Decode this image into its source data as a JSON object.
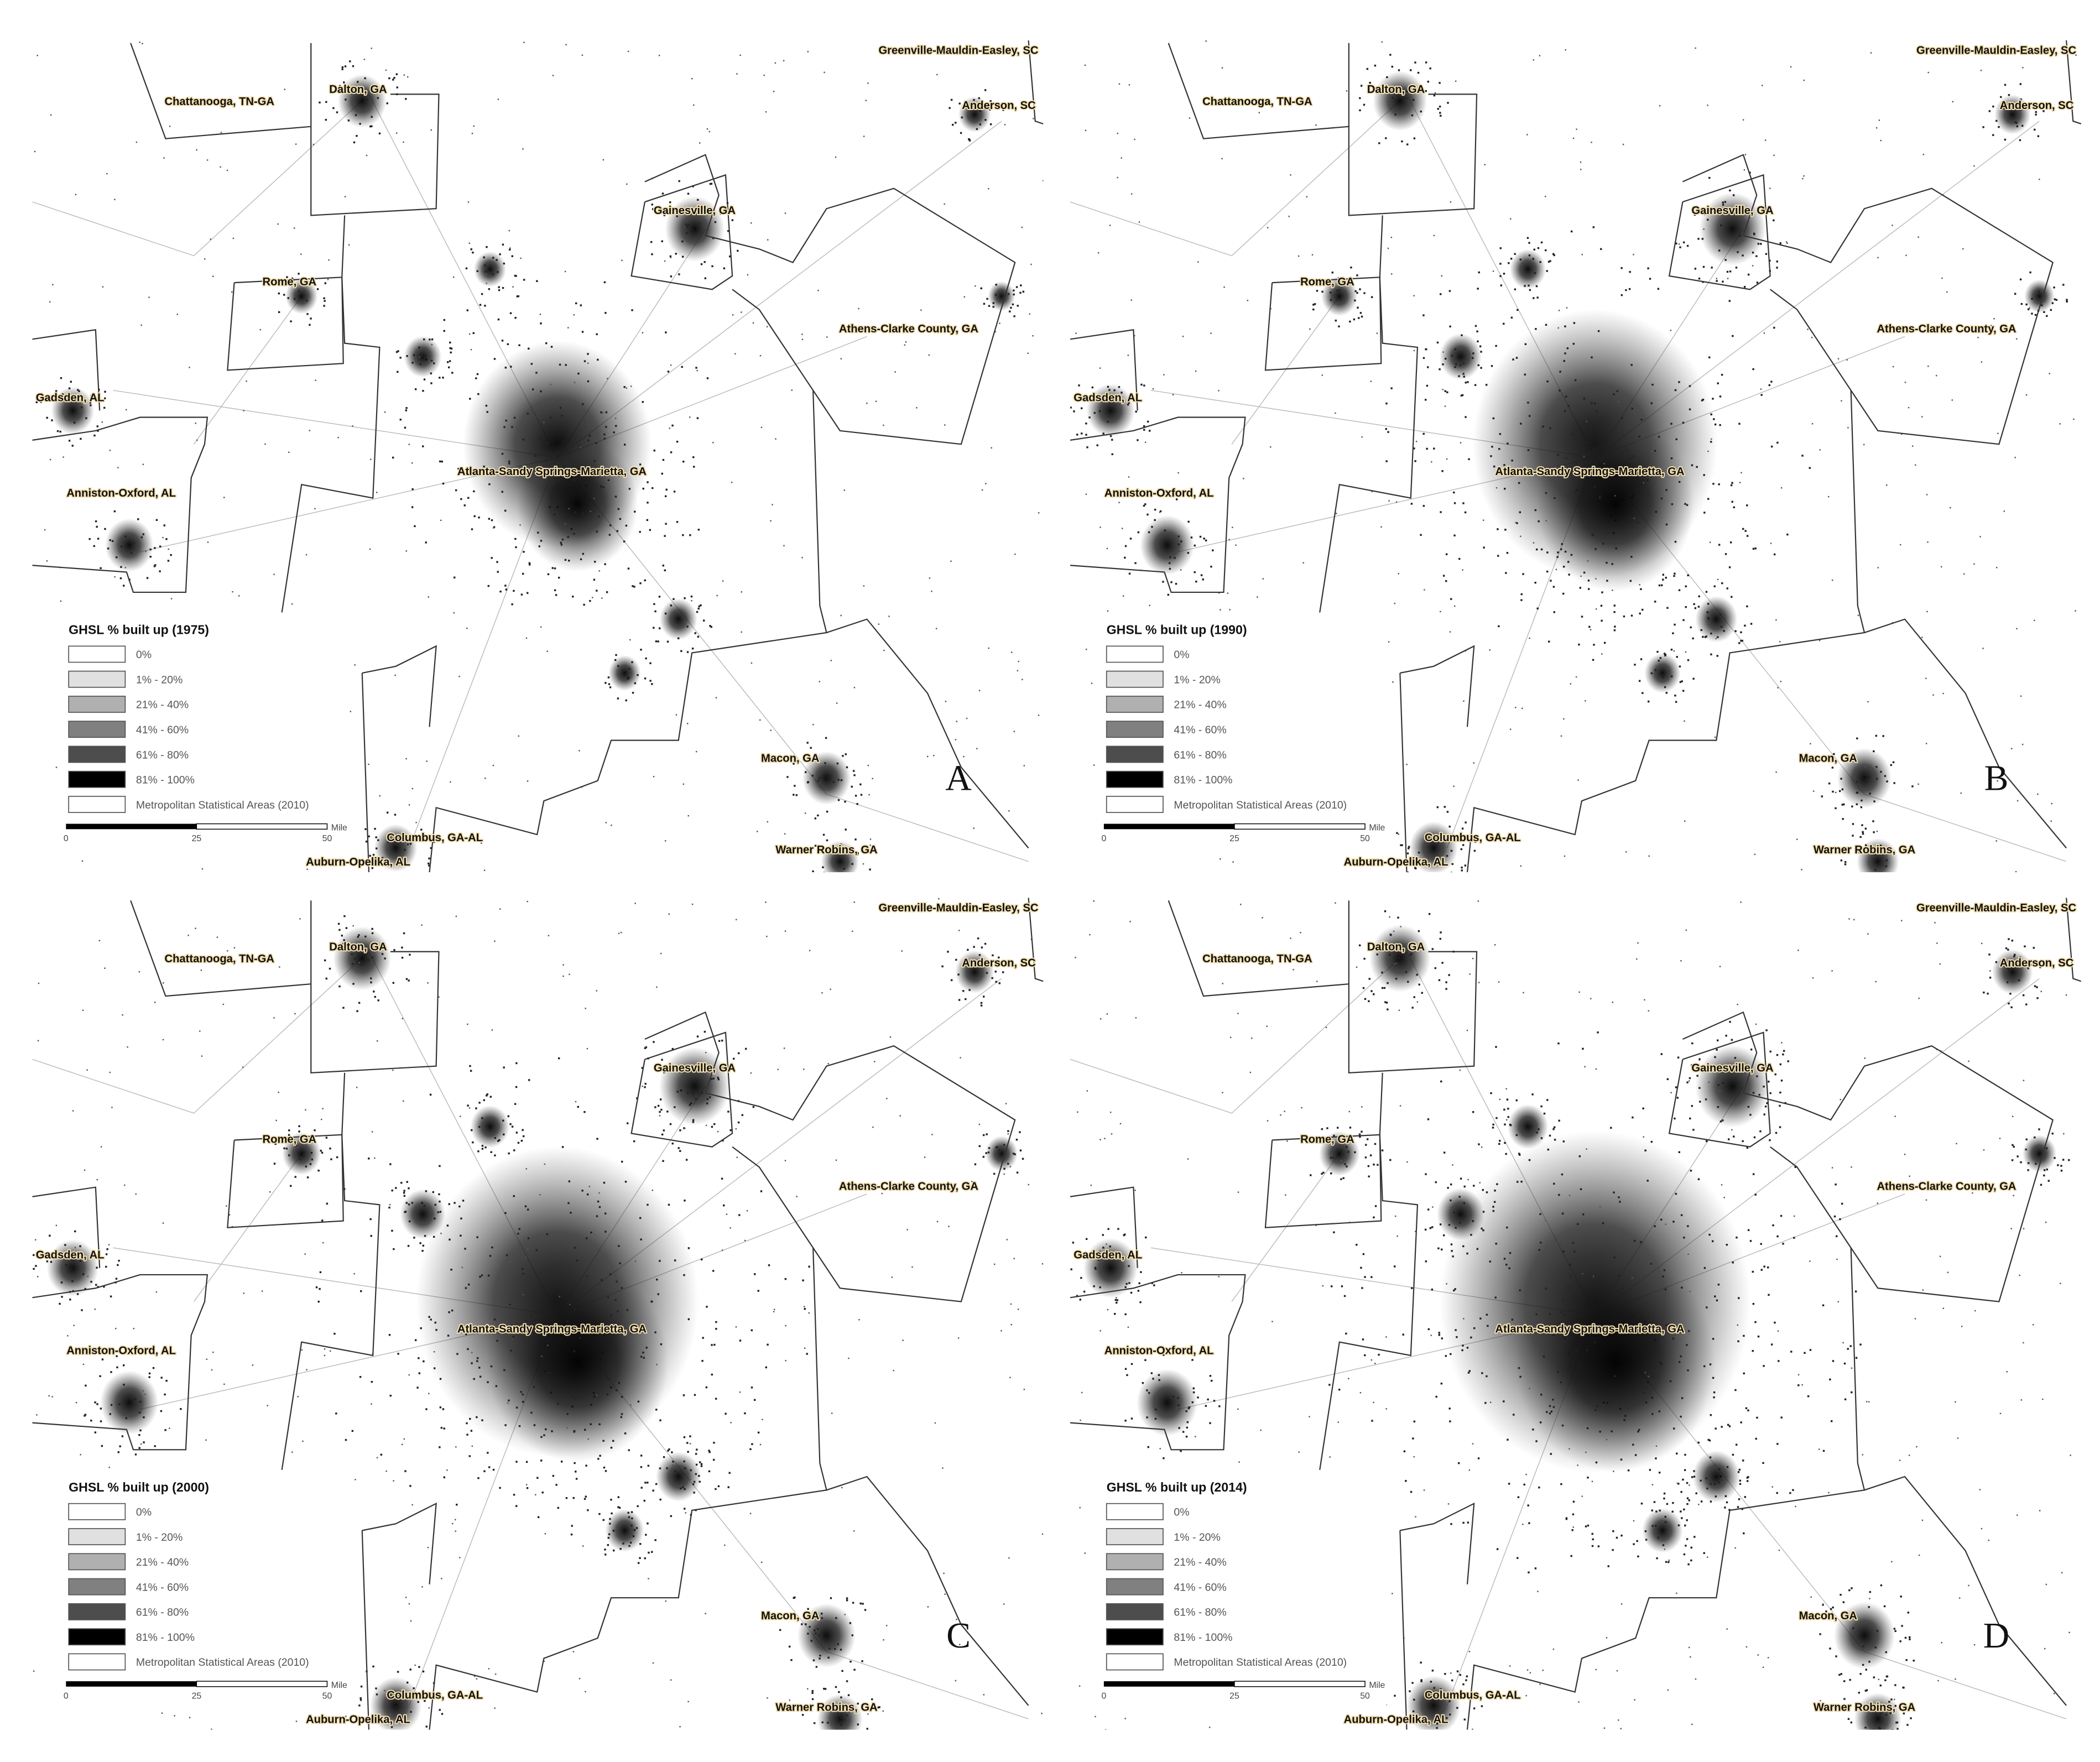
{
  "panels": [
    {
      "letter": "A",
      "legend_title": "GHSL % built up (1975)"
    },
    {
      "letter": "B",
      "legend_title": "GHSL % built up (1990)"
    },
    {
      "letter": "C",
      "legend_title": "GHSL % built up (2000)"
    },
    {
      "letter": "D",
      "legend_title": "GHSL % built up (2014)"
    }
  ],
  "legend_items": [
    {
      "label": "0%",
      "color": "#ffffff"
    },
    {
      "label": "1% - 20%",
      "color": "#e0e0e0"
    },
    {
      "label": "21% - 40%",
      "color": "#b0b0b0"
    },
    {
      "label": "41% - 60%",
      "color": "#808080"
    },
    {
      "label": "61% - 80%",
      "color": "#4d4d4d"
    },
    {
      "label": "81% - 100%",
      "color": "#000000"
    },
    {
      "label": "Metropolitan Statistical Areas (2010)",
      "color": "#ffffff"
    }
  ],
  "scale_bar": {
    "labels": [
      "0",
      "25",
      "50"
    ],
    "unit": "Mile"
  },
  "cities": [
    "Chattanooga, TN-GA",
    "Dalton, GA",
    "Greenville-Mauldin-Easley, SC",
    "Anderson, SC",
    "Gainesville, GA",
    "Rome, GA",
    "Athens-Clarke County, GA",
    "Gadsden, AL",
    "Atlanta-Sandy Springs-Marietta, GA",
    "Anniston-Oxford, AL",
    "Macon, GA",
    "Columbus, GA-AL",
    "Warner Robins, GA",
    "Auburn-Opelika, AL"
  ]
}
